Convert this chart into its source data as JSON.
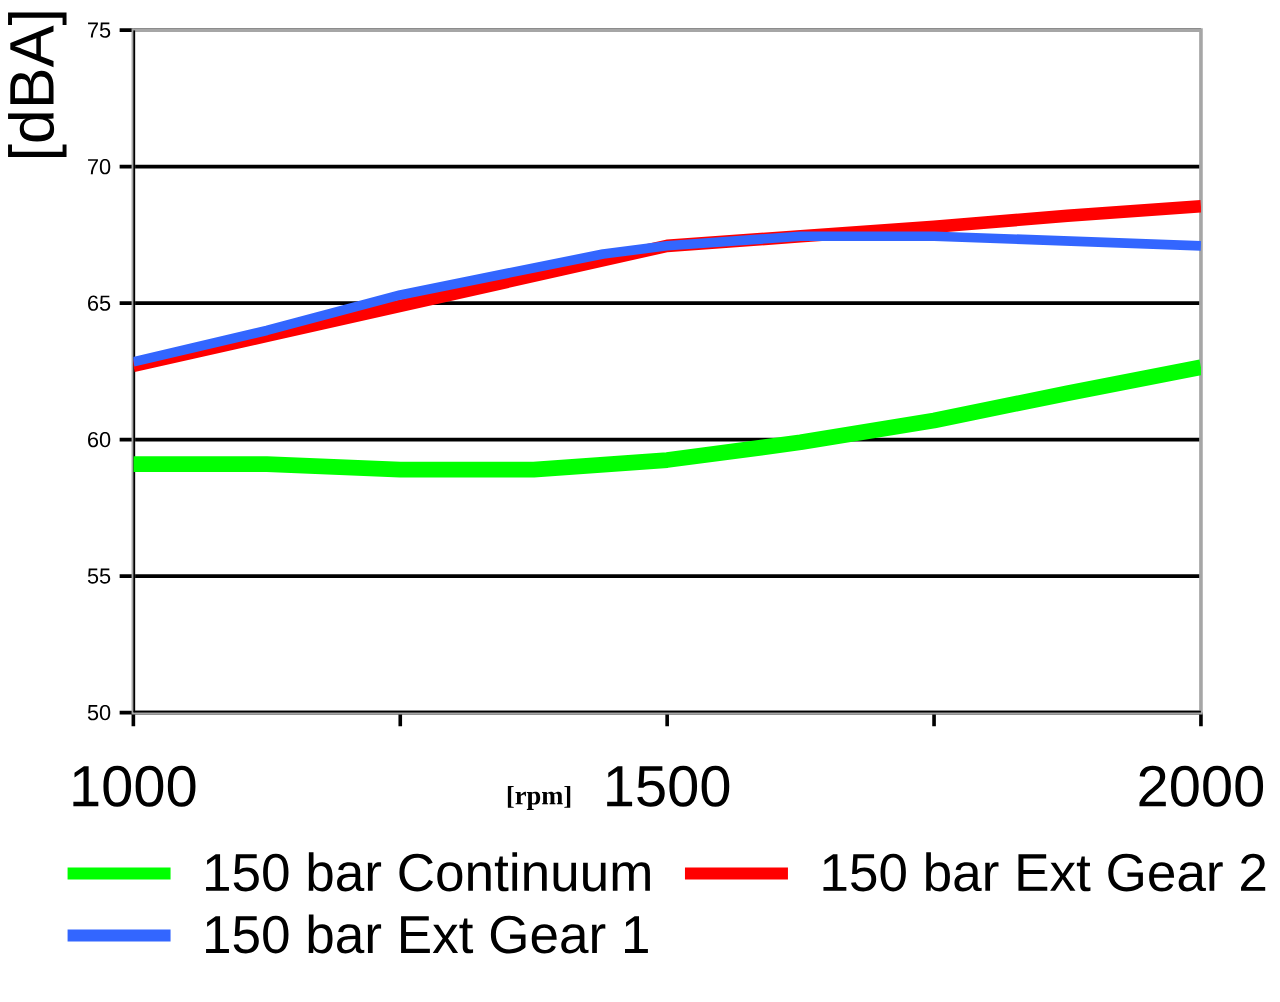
{
  "chart_data": {
    "type": "line",
    "xlabel": "[rpm]",
    "ylabel": "[dBA]",
    "xlim": [
      1000,
      2000
    ],
    "ylim": [
      50,
      75
    ],
    "xticks": [
      1000,
      {
        "value": 1250,
        "label": null
      },
      1500,
      {
        "value": 1750,
        "label": null
      },
      2000
    ],
    "yticks": [
      50,
      55,
      60,
      65,
      70,
      75
    ],
    "grid": "y",
    "legend": "bottom",
    "marker": "none",
    "line_style": "solid",
    "series": [
      {
        "name": "150 bar Continuum",
        "color": "#00ff00",
        "x": [
          1000,
          1125,
          1250,
          1375,
          1500,
          1625,
          1750,
          1875,
          2000
        ],
        "values": [
          59.1,
          59.1,
          58.9,
          58.9,
          59.25,
          59.9,
          60.7,
          61.7,
          62.65
        ]
      },
      {
        "name": "150 bar Ext Gear 2",
        "color": "#ff0000",
        "x": [
          1000,
          1125,
          1250,
          1375,
          1500,
          1625,
          1750,
          1875,
          2000
        ],
        "values": [
          62.7,
          63.8,
          64.9,
          66.0,
          67.1,
          67.45,
          67.8,
          68.2,
          68.55
        ]
      },
      {
        "name": "150 bar Ext Gear 1",
        "color": "#3366ff",
        "x": [
          1000,
          1125,
          1250,
          1440,
          1500,
          1625,
          1750,
          2000
        ],
        "values": [
          62.85,
          64.0,
          65.3,
          66.8,
          67.1,
          67.45,
          67.45,
          67.1
        ]
      }
    ]
  }
}
